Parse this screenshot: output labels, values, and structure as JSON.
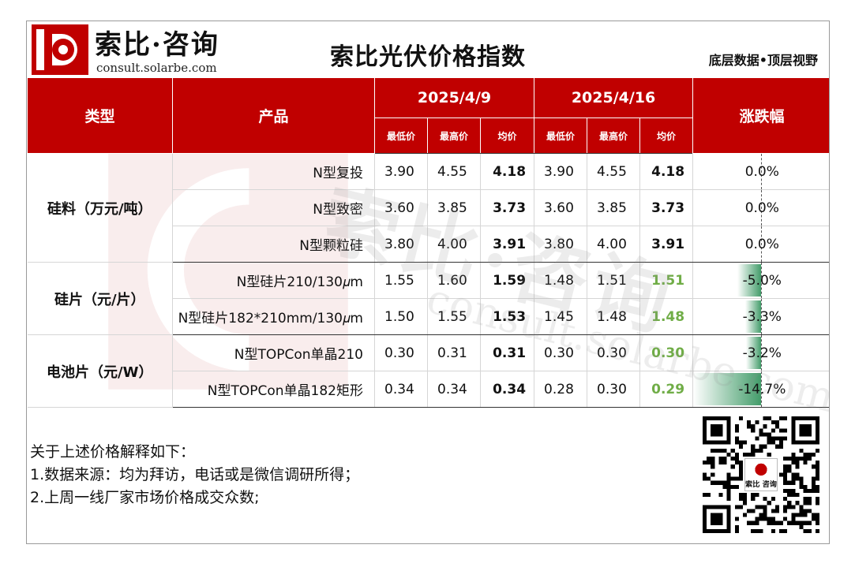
{
  "brand": {
    "name_cn": "索比·咨询",
    "url": "consult.solarbe.com",
    "logo_color": "#c00000"
  },
  "title": "索比光伏价格指数",
  "slogan": "底层数据•顶层视野",
  "table": {
    "header": {
      "category": "类型",
      "product": "产品",
      "date1": "2025/4/9",
      "date2": "2025/4/16",
      "change": "涨跌幅",
      "low": "最低价",
      "high": "最高价",
      "avg": "均价"
    },
    "groups": [
      {
        "category": "硅料（万元/吨）",
        "rows": [
          {
            "product": "N型复投",
            "low1": "3.90",
            "high1": "4.55",
            "avg1": "4.18",
            "low2": "3.90",
            "high2": "4.55",
            "avg2": "4.18",
            "change": "0.0%",
            "change_value": 0.0
          },
          {
            "product": "N型致密",
            "low1": "3.60",
            "high1": "3.85",
            "avg1": "3.73",
            "low2": "3.60",
            "high2": "3.85",
            "avg2": "3.73",
            "change": "0.0%",
            "change_value": 0.0
          },
          {
            "product": "N型颗粒硅",
            "low1": "3.80",
            "high1": "4.00",
            "avg1": "3.91",
            "low2": "3.80",
            "high2": "4.00",
            "avg2": "3.91",
            "change": "0.0%",
            "change_value": 0.0
          }
        ]
      },
      {
        "category": "硅片（元/片）",
        "rows": [
          {
            "product": "N型硅片210/130𝜇m",
            "low1": "1.55",
            "high1": "1.60",
            "avg1": "1.59",
            "low2": "1.48",
            "high2": "1.51",
            "avg2": "1.51",
            "change": "-5.0%",
            "change_value": -5.0
          },
          {
            "product": "N型硅片182*210mm/130𝜇m",
            "low1": "1.50",
            "high1": "1.55",
            "avg1": "1.53",
            "low2": "1.45",
            "high2": "1.48",
            "avg2": "1.48",
            "change": "-3.3%",
            "change_value": -3.3
          }
        ]
      },
      {
        "category": "电池片（元/W）",
        "rows": [
          {
            "product": "N型TOPCon单晶210",
            "low1": "0.30",
            "high1": "0.31",
            "avg1": "0.31",
            "low2": "0.30",
            "high2": "0.30",
            "avg2": "0.30",
            "change": "-3.2%",
            "change_value": -3.2
          },
          {
            "product": "N型TOPCon单晶182矩形",
            "low1": "0.34",
            "high1": "0.34",
            "avg1": "0.34",
            "low2": "0.28",
            "high2": "0.30",
            "avg2": "0.29",
            "change": "-14.7%",
            "change_value": -14.7
          }
        ]
      }
    ],
    "colors": {
      "header_bg": "#c00000",
      "down_avg": "#70ad47",
      "bar": "#228b50"
    }
  },
  "notes": [
    "关于上述价格解释如下：",
    "1.数据来源：均为拜访，电话或是微信调研所得；",
    "2.上周一线厂家市场价格成交众数;"
  ],
  "watermark": {
    "text": "索比·咨询",
    "url": "consult.solarbe.com"
  },
  "qr_label": "索比 咨询"
}
